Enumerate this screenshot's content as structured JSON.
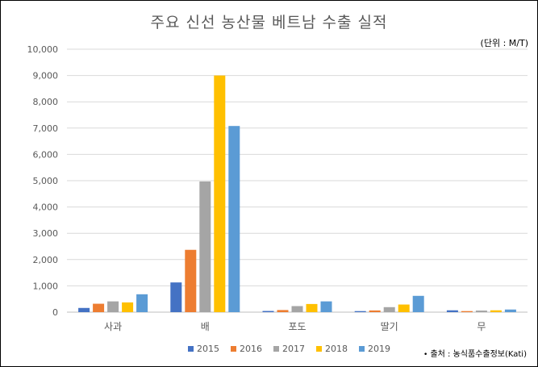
{
  "chart_data": {
    "type": "bar",
    "title": "주요 신선 농산물 베트남 수출 실적",
    "unit_note": "(단위 : M/T)",
    "source_note": "출처 : 농식품수출정보(Kati)",
    "source_bullet": "•",
    "categories": [
      "사과",
      "배",
      "포도",
      "딸기",
      "무"
    ],
    "series": [
      {
        "name": "2015",
        "color": "#4472C4",
        "values": [
          160,
          1130,
          45,
          40,
          70
        ]
      },
      {
        "name": "2016",
        "color": "#ED7D31",
        "values": [
          320,
          2370,
          80,
          65,
          40
        ]
      },
      {
        "name": "2017",
        "color": "#A5A5A5",
        "values": [
          410,
          4970,
          230,
          190,
          60
        ]
      },
      {
        "name": "2018",
        "color": "#FFC000",
        "values": [
          370,
          9000,
          310,
          290,
          70
        ]
      },
      {
        "name": "2019",
        "color": "#5B9BD5",
        "values": [
          680,
          7080,
          410,
          620,
          100
        ]
      }
    ],
    "ylim": [
      0,
      10000
    ],
    "yticks": [
      0,
      1000,
      2000,
      3000,
      4000,
      5000,
      6000,
      7000,
      8000,
      9000,
      10000
    ],
    "ytick_labels": [
      "0",
      "1,000",
      "2,000",
      "3,000",
      "4,000",
      "5,000",
      "6,000",
      "7,000",
      "8,000",
      "9,000",
      "10,000"
    ],
    "grid": true,
    "legend_position": "bottom"
  }
}
